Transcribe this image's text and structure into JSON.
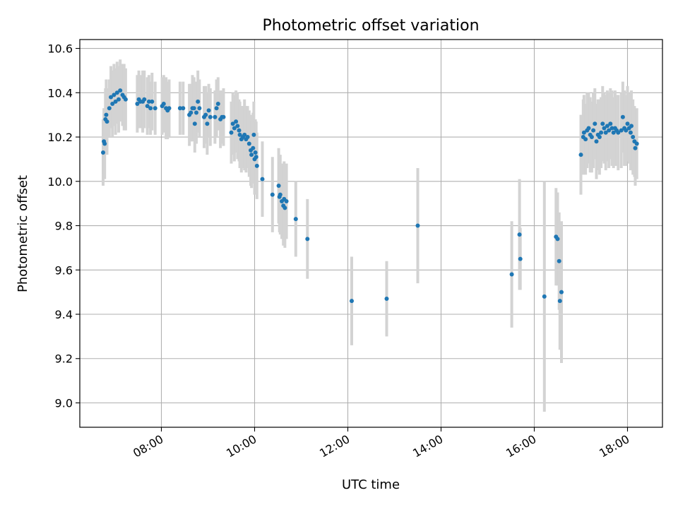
{
  "chart_data": {
    "type": "scatter",
    "title": "Photometric offset variation",
    "xlabel": "UTC time",
    "ylabel": "Photometric offset",
    "x_ticks": [
      "08:00",
      "10:00",
      "12:00",
      "14:00",
      "16:00",
      "18:00"
    ],
    "y_ticks": [
      "9.0",
      "9.2",
      "9.4",
      "9.6",
      "9.8",
      "10.0",
      "10.2",
      "10.4",
      "10.6"
    ],
    "xlim": [
      "06:15",
      "18:45"
    ],
    "ylim": [
      8.89,
      10.64
    ],
    "grid": true,
    "colors": {
      "points": "#1f77b4",
      "errorbars": "#d3d3d3",
      "grid": "#b0b0b0",
      "axes": "#000000"
    },
    "series": [
      {
        "values": [
          {
            "x": "06:45",
            "y": 10.13,
            "err": 0.15
          },
          {
            "x": "06:46",
            "y": 10.18,
            "err": 0.15
          },
          {
            "x": "06:47",
            "y": 10.17,
            "err": 0.16
          },
          {
            "x": "06:48",
            "y": 10.28,
            "err": 0.14
          },
          {
            "x": "06:49",
            "y": 10.3,
            "err": 0.16
          },
          {
            "x": "06:50",
            "y": 10.27,
            "err": 0.15
          },
          {
            "x": "06:53",
            "y": 10.33,
            "err": 0.13
          },
          {
            "x": "06:55",
            "y": 10.38,
            "err": 0.14
          },
          {
            "x": "06:57",
            "y": 10.35,
            "err": 0.15
          },
          {
            "x": "06:59",
            "y": 10.39,
            "err": 0.14
          },
          {
            "x": "07:01",
            "y": 10.36,
            "err": 0.15
          },
          {
            "x": "07:03",
            "y": 10.4,
            "err": 0.14
          },
          {
            "x": "07:05",
            "y": 10.37,
            "err": 0.15
          },
          {
            "x": "07:07",
            "y": 10.41,
            "err": 0.14
          },
          {
            "x": "07:10",
            "y": 10.39,
            "err": 0.14
          },
          {
            "x": "07:12",
            "y": 10.38,
            "err": 0.15
          },
          {
            "x": "07:14",
            "y": 10.37,
            "err": 0.14
          },
          {
            "x": "07:29",
            "y": 10.35,
            "err": 0.13
          },
          {
            "x": "07:31",
            "y": 10.37,
            "err": 0.13
          },
          {
            "x": "07:33",
            "y": 10.36,
            "err": 0.12
          },
          {
            "x": "07:36",
            "y": 10.36,
            "err": 0.14
          },
          {
            "x": "07:38",
            "y": 10.37,
            "err": 0.13
          },
          {
            "x": "07:42",
            "y": 10.34,
            "err": 0.13
          },
          {
            "x": "07:44",
            "y": 10.36,
            "err": 0.12
          },
          {
            "x": "07:46",
            "y": 10.33,
            "err": 0.12
          },
          {
            "x": "07:48",
            "y": 10.36,
            "err": 0.13
          },
          {
            "x": "07:52",
            "y": 10.33,
            "err": 0.12
          },
          {
            "x": "08:01",
            "y": 10.34,
            "err": 0.13
          },
          {
            "x": "08:03",
            "y": 10.35,
            "err": 0.13
          },
          {
            "x": "08:06",
            "y": 10.33,
            "err": 0.14
          },
          {
            "x": "08:08",
            "y": 10.32,
            "err": 0.13
          },
          {
            "x": "08:10",
            "y": 10.33,
            "err": 0.13
          },
          {
            "x": "08:24",
            "y": 10.33,
            "err": 0.12
          },
          {
            "x": "08:28",
            "y": 10.33,
            "err": 0.12
          },
          {
            "x": "08:36",
            "y": 10.3,
            "err": 0.14
          },
          {
            "x": "08:38",
            "y": 10.31,
            "err": 0.13
          },
          {
            "x": "08:40",
            "y": 10.33,
            "err": 0.15
          },
          {
            "x": "08:42",
            "y": 10.33,
            "err": 0.14
          },
          {
            "x": "08:43",
            "y": 10.26,
            "err": 0.13
          },
          {
            "x": "08:45",
            "y": 10.31,
            "err": 0.14
          },
          {
            "x": "08:47",
            "y": 10.36,
            "err": 0.14
          },
          {
            "x": "08:49",
            "y": 10.33,
            "err": 0.13
          },
          {
            "x": "08:55",
            "y": 10.29,
            "err": 0.14
          },
          {
            "x": "08:57",
            "y": 10.3,
            "err": 0.13
          },
          {
            "x": "08:59",
            "y": 10.26,
            "err": 0.14
          },
          {
            "x": "09:01",
            "y": 10.32,
            "err": 0.12
          },
          {
            "x": "09:03",
            "y": 10.29,
            "err": 0.13
          },
          {
            "x": "09:09",
            "y": 10.29,
            "err": 0.12
          },
          {
            "x": "09:11",
            "y": 10.33,
            "err": 0.13
          },
          {
            "x": "09:13",
            "y": 10.35,
            "err": 0.12
          },
          {
            "x": "09:16",
            "y": 10.28,
            "err": 0.13
          },
          {
            "x": "09:18",
            "y": 10.29,
            "err": 0.12
          },
          {
            "x": "09:20",
            "y": 10.29,
            "err": 0.13
          },
          {
            "x": "09:30",
            "y": 10.22,
            "err": 0.14
          },
          {
            "x": "09:32",
            "y": 10.26,
            "err": 0.14
          },
          {
            "x": "09:34",
            "y": 10.24,
            "err": 0.15
          },
          {
            "x": "09:36",
            "y": 10.27,
            "err": 0.14
          },
          {
            "x": "09:38",
            "y": 10.25,
            "err": 0.15
          },
          {
            "x": "09:40",
            "y": 10.23,
            "err": 0.14
          },
          {
            "x": "09:41",
            "y": 10.21,
            "err": 0.15
          },
          {
            "x": "09:43",
            "y": 10.19,
            "err": 0.15
          },
          {
            "x": "09:45",
            "y": 10.2,
            "err": 0.14
          },
          {
            "x": "09:47",
            "y": 10.21,
            "err": 0.16
          },
          {
            "x": "09:49",
            "y": 10.19,
            "err": 0.15
          },
          {
            "x": "09:51",
            "y": 10.2,
            "err": 0.14
          },
          {
            "x": "09:53",
            "y": 10.17,
            "err": 0.15
          },
          {
            "x": "09:55",
            "y": 10.14,
            "err": 0.16
          },
          {
            "x": "09:56",
            "y": 10.12,
            "err": 0.15
          },
          {
            "x": "09:58",
            "y": 10.15,
            "err": 0.16
          },
          {
            "x": "09:59",
            "y": 10.21,
            "err": 0.15
          },
          {
            "x": "10:00",
            "y": 10.1,
            "err": 0.16
          },
          {
            "x": "10:01",
            "y": 10.13,
            "err": 0.15
          },
          {
            "x": "10:02",
            "y": 10.11,
            "err": 0.16
          },
          {
            "x": "10:03",
            "y": 10.07,
            "err": 0.15
          },
          {
            "x": "10:10",
            "y": 10.01,
            "err": 0.17
          },
          {
            "x": "10:23",
            "y": 9.94,
            "err": 0.17
          },
          {
            "x": "10:31",
            "y": 9.98,
            "err": 0.17
          },
          {
            "x": "10:32",
            "y": 9.93,
            "err": 0.16
          },
          {
            "x": "10:33",
            "y": 9.94,
            "err": 0.18
          },
          {
            "x": "10:35",
            "y": 9.91,
            "err": 0.17
          },
          {
            "x": "10:37",
            "y": 9.89,
            "err": 0.18
          },
          {
            "x": "10:38",
            "y": 9.92,
            "err": 0.17
          },
          {
            "x": "10:39",
            "y": 9.88,
            "err": 0.18
          },
          {
            "x": "10:41",
            "y": 9.91,
            "err": 0.17
          },
          {
            "x": "10:53",
            "y": 9.83,
            "err": 0.17
          },
          {
            "x": "11:08",
            "y": 9.74,
            "err": 0.18
          },
          {
            "x": "12:05",
            "y": 9.46,
            "err": 0.2
          },
          {
            "x": "12:50",
            "y": 9.47,
            "err": 0.17
          },
          {
            "x": "13:30",
            "y": 9.8,
            "err": 0.26
          },
          {
            "x": "15:31",
            "y": 9.58,
            "err": 0.24
          },
          {
            "x": "15:41",
            "y": 9.76,
            "err": 0.25
          },
          {
            "x": "15:42",
            "y": 9.65,
            "err": 0.14
          },
          {
            "x": "16:13",
            "y": 9.48,
            "err": 0.52
          },
          {
            "x": "16:28",
            "y": 9.75,
            "err": 0.22
          },
          {
            "x": "16:30",
            "y": 9.74,
            "err": 0.21
          },
          {
            "x": "16:32",
            "y": 9.64,
            "err": 0.22
          },
          {
            "x": "16:33",
            "y": 9.46,
            "err": 0.22
          },
          {
            "x": "16:35",
            "y": 9.5,
            "err": 0.32
          },
          {
            "x": "17:00",
            "y": 10.12,
            "err": 0.18
          },
          {
            "x": "17:03",
            "y": 10.2,
            "err": 0.17
          },
          {
            "x": "17:04",
            "y": 10.22,
            "err": 0.17
          },
          {
            "x": "17:06",
            "y": 10.19,
            "err": 0.16
          },
          {
            "x": "17:08",
            "y": 10.23,
            "err": 0.17
          },
          {
            "x": "17:10",
            "y": 10.24,
            "err": 0.16
          },
          {
            "x": "17:12",
            "y": 10.21,
            "err": 0.17
          },
          {
            "x": "17:14",
            "y": 10.2,
            "err": 0.16
          },
          {
            "x": "17:16",
            "y": 10.23,
            "err": 0.17
          },
          {
            "x": "17:18",
            "y": 10.26,
            "err": 0.16
          },
          {
            "x": "17:20",
            "y": 10.18,
            "err": 0.17
          },
          {
            "x": "17:22",
            "y": 10.21,
            "err": 0.16
          },
          {
            "x": "17:24",
            "y": 10.2,
            "err": 0.17
          },
          {
            "x": "17:26",
            "y": 10.22,
            "err": 0.16
          },
          {
            "x": "17:28",
            "y": 10.26,
            "err": 0.17
          },
          {
            "x": "17:30",
            "y": 10.24,
            "err": 0.16
          },
          {
            "x": "17:32",
            "y": 10.22,
            "err": 0.17
          },
          {
            "x": "17:34",
            "y": 10.25,
            "err": 0.16
          },
          {
            "x": "17:36",
            "y": 10.23,
            "err": 0.17
          },
          {
            "x": "17:38",
            "y": 10.26,
            "err": 0.16
          },
          {
            "x": "17:40",
            "y": 10.24,
            "err": 0.17
          },
          {
            "x": "17:42",
            "y": 10.22,
            "err": 0.16
          },
          {
            "x": "17:44",
            "y": 10.24,
            "err": 0.17
          },
          {
            "x": "17:46",
            "y": 10.23,
            "err": 0.16
          },
          {
            "x": "17:48",
            "y": 10.22,
            "err": 0.17
          },
          {
            "x": "17:52",
            "y": 10.23,
            "err": 0.17
          },
          {
            "x": "17:54",
            "y": 10.29,
            "err": 0.16
          },
          {
            "x": "17:56",
            "y": 10.24,
            "err": 0.17
          },
          {
            "x": "17:58",
            "y": 10.23,
            "err": 0.16
          },
          {
            "x": "18:00",
            "y": 10.26,
            "err": 0.17
          },
          {
            "x": "18:02",
            "y": 10.24,
            "err": 0.16
          },
          {
            "x": "18:04",
            "y": 10.22,
            "err": 0.17
          },
          {
            "x": "18:05",
            "y": 10.25,
            "err": 0.16
          },
          {
            "x": "18:07",
            "y": 10.2,
            "err": 0.17
          },
          {
            "x": "18:09",
            "y": 10.18,
            "err": 0.16
          },
          {
            "x": "18:10",
            "y": 10.15,
            "err": 0.17
          },
          {
            "x": "18:12",
            "y": 10.17,
            "err": 0.16
          }
        ]
      }
    ]
  }
}
